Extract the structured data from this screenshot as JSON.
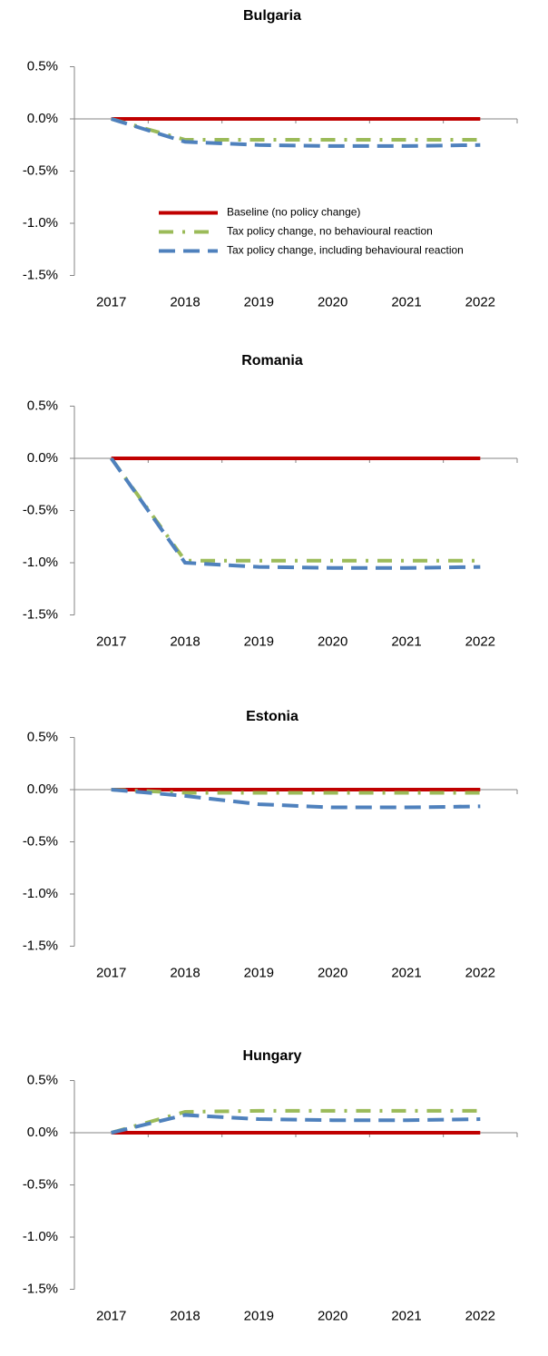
{
  "chart_data": [
    {
      "type": "line",
      "title": "Bulgaria",
      "categories": [
        "2017",
        "2018",
        "2019",
        "2020",
        "2021",
        "2022"
      ],
      "ylim": [
        -1.5,
        0.5
      ],
      "yticks": [
        {
          "value": -1.5,
          "label": "-1.5%"
        },
        {
          "value": -1,
          "label": "-1.0%"
        },
        {
          "value": -0.5,
          "label": "-0.5%"
        },
        {
          "value": 0,
          "label": "0.0%"
        },
        {
          "value": 0.5,
          "label": "0.5%"
        }
      ],
      "legend": "center",
      "series": [
        {
          "name": "Baseline (no policy change)",
          "color": "#c00000",
          "style": "solid",
          "values": [
            0,
            0,
            0,
            0,
            0,
            0
          ]
        },
        {
          "name": "Tax policy change, no behavioural reaction",
          "color": "#9bbb59",
          "style": "dash-dot",
          "values": [
            0,
            -0.2,
            -0.2,
            -0.2,
            -0.2,
            -0.2
          ]
        },
        {
          "name": "Tax policy change, including behavioural reaction",
          "color": "#4f81bd",
          "style": "dash",
          "values": [
            0,
            -0.22,
            -0.25,
            -0.26,
            -0.26,
            -0.25
          ]
        }
      ]
    },
    {
      "type": "line",
      "title": "Romania",
      "categories": [
        "2017",
        "2018",
        "2019",
        "2020",
        "2021",
        "2022"
      ],
      "ylim": [
        -1.5,
        0.5
      ],
      "yticks": [
        {
          "value": -1.5,
          "label": "-1.5%"
        },
        {
          "value": -1,
          "label": "-1.0%"
        },
        {
          "value": -0.5,
          "label": "-0.5%"
        },
        {
          "value": 0,
          "label": "0.0%"
        },
        {
          "value": 0.5,
          "label": "0.5%"
        }
      ],
      "series": [
        {
          "color": "#c00000",
          "style": "solid",
          "values": [
            0,
            0,
            0,
            0,
            0,
            0
          ]
        },
        {
          "color": "#9bbb59",
          "style": "dash-dot",
          "values": [
            0,
            -0.98,
            -0.98,
            -0.98,
            -0.98,
            -0.98
          ]
        },
        {
          "color": "#4f81bd",
          "style": "dash",
          "values": [
            0,
            -1.0,
            -1.04,
            -1.05,
            -1.05,
            -1.04
          ]
        }
      ]
    },
    {
      "type": "line",
      "title": "Estonia",
      "categories": [
        "2017",
        "2018",
        "2019",
        "2020",
        "2021",
        "2022"
      ],
      "ylim": [
        -1.5,
        0.5
      ],
      "yticks": [
        {
          "value": -1.5,
          "label": "-1.5%"
        },
        {
          "value": -1,
          "label": "-1.0%"
        },
        {
          "value": -0.5,
          "label": "-0.5%"
        },
        {
          "value": 0,
          "label": "0.0%"
        },
        {
          "value": 0.5,
          "label": "0.5%"
        }
      ],
      "series": [
        {
          "color": "#c00000",
          "style": "solid",
          "values": [
            0,
            0,
            0,
            0,
            0,
            0
          ]
        },
        {
          "color": "#9bbb59",
          "style": "dash-dot",
          "values": [
            0,
            -0.03,
            -0.03,
            -0.03,
            -0.03,
            -0.03
          ]
        },
        {
          "color": "#4f81bd",
          "style": "dash",
          "values": [
            0,
            -0.06,
            -0.14,
            -0.17,
            -0.17,
            -0.16
          ]
        }
      ]
    },
    {
      "type": "line",
      "title": "Hungary",
      "categories": [
        "2017",
        "2018",
        "2019",
        "2020",
        "2021",
        "2022"
      ],
      "ylim": [
        -1.5,
        0.5
      ],
      "yticks": [
        {
          "value": -1.5,
          "label": "-1.5%"
        },
        {
          "value": -1,
          "label": "-1.0%"
        },
        {
          "value": -0.5,
          "label": "-0.5%"
        },
        {
          "value": 0,
          "label": "0.0%"
        },
        {
          "value": 0.5,
          "label": "0.5%"
        }
      ],
      "series": [
        {
          "color": "#c00000",
          "style": "solid",
          "values": [
            0,
            0,
            0,
            0,
            0,
            0
          ]
        },
        {
          "color": "#9bbb59",
          "style": "dash-dot",
          "values": [
            0,
            0.2,
            0.21,
            0.21,
            0.21,
            0.21
          ]
        },
        {
          "color": "#4f81bd",
          "style": "dash",
          "values": [
            0,
            0.17,
            0.13,
            0.12,
            0.12,
            0.13
          ]
        }
      ]
    }
  ]
}
